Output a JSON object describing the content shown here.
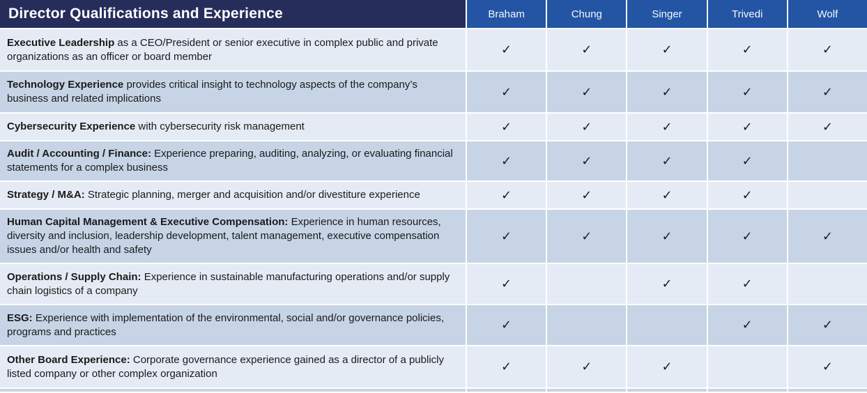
{
  "table": {
    "title": "Director Qualifications and Experience",
    "directors": [
      "Braham",
      "Chung",
      "Singer",
      "Trivedi",
      "Wolf"
    ],
    "check_glyph": "✓",
    "colors": {
      "title_bg": "#262D5B",
      "header_bg": "#2355A4",
      "row_light": "#E5EBF5",
      "row_dark": "#C6D4E6",
      "text": "#1A1A1A"
    },
    "rows": [
      {
        "bold": "Executive Leadership",
        "rest": " as a CEO/President or senior executive in complex public and private organizations as an officer or board member",
        "checks": [
          "✓",
          "✓",
          "✓",
          "✓",
          "✓"
        ]
      },
      {
        "bold": "Technology Experience",
        "rest": " provides critical insight to technology aspects of the company’s business and related implications",
        "checks": [
          "✓",
          "✓",
          "✓",
          "✓",
          "✓"
        ]
      },
      {
        "bold": "Cybersecurity Experience",
        "rest": " with cybersecurity risk management",
        "checks": [
          "✓",
          "✓",
          "✓",
          "✓",
          "✓"
        ]
      },
      {
        "bold": "Audit / Accounting / Finance:",
        "rest": " Experience preparing, auditing, analyzing, or evaluating financial statements for a complex business",
        "checks": [
          "✓",
          "✓",
          "✓",
          "✓",
          ""
        ]
      },
      {
        "bold": "Strategy / M&A:",
        "rest": " Strategic planning, merger and acquisition and/or divestiture experience",
        "checks": [
          "✓",
          "✓",
          "✓",
          "✓",
          ""
        ]
      },
      {
        "bold": "Human Capital Management & Executive Compensation:",
        "rest": " Experience in human resources, diversity and inclusion, leadership development, talent management, executive compensation issues and/or health and safety",
        "checks": [
          "✓",
          "✓",
          "✓",
          "✓",
          "✓"
        ]
      },
      {
        "bold": "Operations / Supply Chain:",
        "rest": " Experience in sustainable manufacturing operations and/or supply chain logistics of a company",
        "checks": [
          "✓",
          "",
          "✓",
          "✓",
          ""
        ]
      },
      {
        "bold": "ESG:",
        "rest": " Experience with implementation of the environmental, social and/or governance policies, programs and practices",
        "checks": [
          "✓",
          "",
          "",
          "✓",
          "✓"
        ]
      },
      {
        "bold": "Other Board Experience:",
        "rest": " Corporate governance experience gained as a director of a publicly listed company or other complex organization",
        "checks": [
          "✓",
          "✓",
          "✓",
          "",
          "✓"
        ]
      }
    ]
  }
}
